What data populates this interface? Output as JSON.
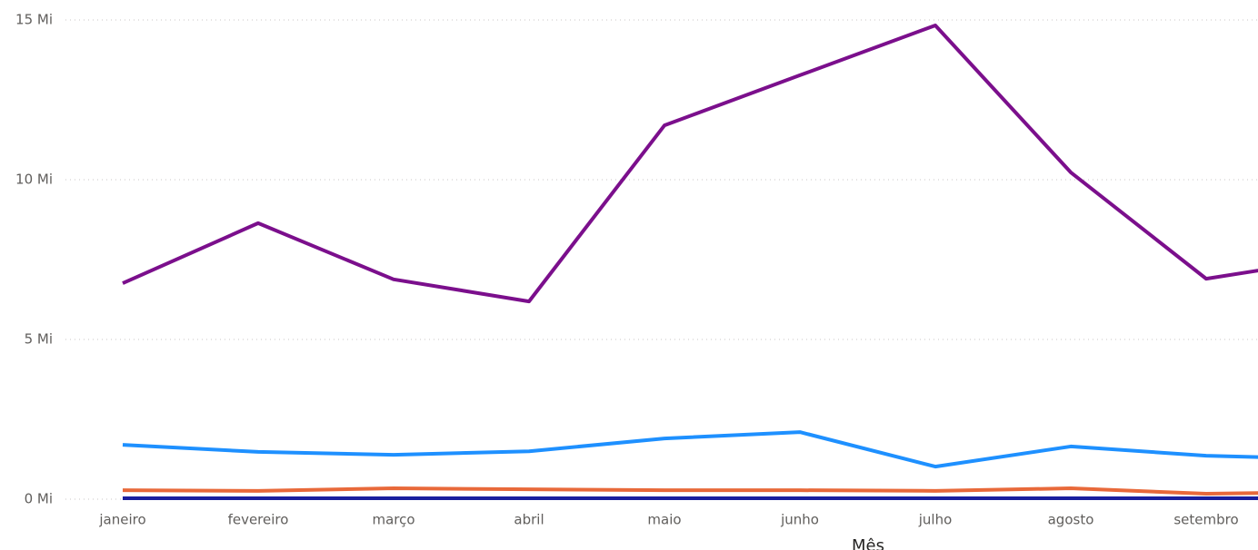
{
  "chart_data": {
    "type": "line",
    "x_label": "Mês",
    "categories": [
      "janeiro",
      "fevereiro",
      "março",
      "abril",
      "maio",
      "junho",
      "julho",
      "agosto",
      "setembro",
      null
    ],
    "series": [
      {
        "color": "#7b0f8c",
        "values": [
          6.76,
          8.64,
          6.88,
          6.19,
          11.7,
          13.27,
          14.83,
          10.23,
          6.9,
          7.57
        ]
      },
      {
        "color": "#1e90ff",
        "values": [
          1.7,
          1.48,
          1.39,
          1.5,
          1.9,
          2.1,
          1.02,
          1.65,
          1.36,
          1.25
        ]
      },
      {
        "color": "#e8693a",
        "values": [
          0.28,
          0.26,
          0.34,
          0.31,
          0.28,
          0.28,
          0.26,
          0.34,
          0.17,
          0.23
        ]
      },
      {
        "color": "#1a1f9e",
        "values": [
          0.03,
          0.03,
          0.03,
          0.03,
          0.03,
          0.03,
          0.03,
          0.03,
          0.03,
          0.03
        ]
      }
    ],
    "ylim": [
      0,
      15
    ],
    "yticks": [
      {
        "value": 0,
        "label": "0 Mi"
      },
      {
        "value": 5,
        "label": "5 Mi"
      },
      {
        "value": 10,
        "label": "10 Mi"
      },
      {
        "value": 15,
        "label": "15 Mi"
      }
    ],
    "grid": true
  }
}
